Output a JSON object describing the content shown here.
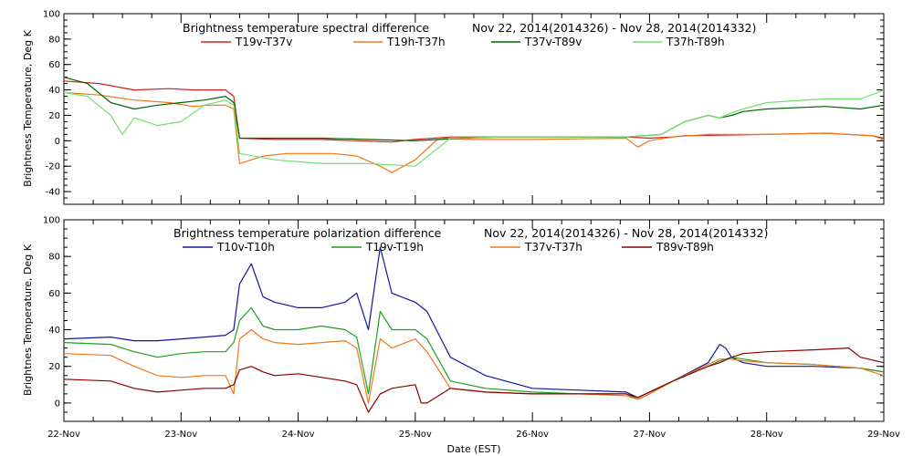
{
  "xlabel": "Date (EST)",
  "x_tick_labels": [
    "22-Nov",
    "23-Nov",
    "24-Nov",
    "25-Nov",
    "26-Nov",
    "27-Nov",
    "28-Nov",
    "29-Nov"
  ],
  "chart_data": [
    {
      "type": "line",
      "title_left": "Brightness temperature spectral difference",
      "title_right": "Nov 22, 2014(2014326) - Nov 28, 2014(2014332)",
      "ylabel": "Brightness Temperature, Deg K",
      "xlim": [
        0,
        7
      ],
      "ylim": [
        -50,
        100
      ],
      "y_ticks": [
        -40,
        -20,
        0,
        20,
        40,
        60,
        80,
        100
      ],
      "x_unit": "days since 22-Nov",
      "series": [
        {
          "name": "T19v-T37v",
          "color": "#d42020",
          "x": [
            0,
            0.3,
            0.6,
            0.9,
            1.1,
            1.25,
            1.38,
            1.45,
            1.5,
            1.8,
            2.2,
            2.5,
            2.8,
            3.0,
            3.3,
            3.8,
            4.2,
            4.8,
            5.0,
            5.2,
            5.3,
            6,
            6.5,
            6.9,
            7
          ],
          "y": [
            47,
            45,
            40,
            41,
            40,
            40,
            40,
            35,
            2,
            1,
            1,
            0,
            -1,
            1,
            3,
            3,
            3,
            3,
            2,
            3,
            4,
            5,
            6,
            4,
            2
          ]
        },
        {
          "name": "T19h-T37h",
          "color": "#f07818",
          "x": [
            0,
            0.3,
            0.6,
            0.9,
            1.1,
            1.25,
            1.38,
            1.45,
            1.5,
            1.7,
            1.9,
            2.3,
            2.5,
            2.7,
            2.8,
            3.0,
            3.2,
            3.5,
            4.0,
            4.8,
            4.9,
            5.0,
            5.2,
            5.5,
            6,
            6.5,
            6.9,
            7
          ],
          "y": [
            38,
            36,
            32,
            30,
            27,
            28,
            28,
            25,
            -18,
            -12,
            -10,
            -10,
            -12,
            -20,
            -25,
            -15,
            2,
            1,
            1,
            2,
            -5,
            0,
            3,
            5,
            5,
            6,
            4,
            1
          ]
        },
        {
          "name": "T37v-T89v",
          "color": "#006400",
          "x": [
            0,
            0.2,
            0.4,
            0.6,
            0.8,
            1.0,
            1.2,
            1.38,
            1.45,
            1.5,
            1.8,
            2.2,
            2.6,
            3.0,
            3.4,
            3.8,
            4.2,
            4.8,
            5.1,
            5.3,
            5.5,
            5.6,
            5.7,
            5.8,
            6.0,
            6.5,
            6.8,
            7
          ],
          "y": [
            50,
            45,
            30,
            25,
            28,
            30,
            32,
            35,
            30,
            2,
            2,
            2,
            1,
            0,
            2,
            3,
            3,
            3,
            5,
            15,
            20,
            18,
            20,
            23,
            25,
            27,
            25,
            28
          ]
        },
        {
          "name": "T37h-T89h",
          "color": "#70e070",
          "x": [
            0,
            0.2,
            0.4,
            0.5,
            0.6,
            0.8,
            1.0,
            1.2,
            1.38,
            1.45,
            1.5,
            1.8,
            2.2,
            2.6,
            3.0,
            3.3,
            3.8,
            4.2,
            4.8,
            5.1,
            5.3,
            5.5,
            5.6,
            5.7,
            5.8,
            6.0,
            6.5,
            6.8,
            6.95,
            7
          ],
          "y": [
            38,
            35,
            20,
            5,
            18,
            12,
            15,
            28,
            32,
            28,
            -10,
            -15,
            -18,
            -18,
            -20,
            2,
            3,
            3,
            3,
            5,
            15,
            20,
            18,
            22,
            25,
            30,
            33,
            33,
            38,
            40
          ]
        }
      ]
    },
    {
      "type": "line",
      "title_left": "Brightness temperature polarization difference",
      "title_right": "Nov 22, 2014(2014326) - Nov 28, 2014(2014332)",
      "ylabel": "Brightnes Temperature, Deg K",
      "xlim": [
        0,
        7
      ],
      "ylim": [
        -10,
        100
      ],
      "y_ticks": [
        0,
        20,
        40,
        60,
        80,
        100
      ],
      "x_unit": "days since 22-Nov",
      "series": [
        {
          "name": "T10v-T10h",
          "color": "#1414a0",
          "x": [
            0,
            0.4,
            0.6,
            0.8,
            1.0,
            1.2,
            1.38,
            1.45,
            1.5,
            1.6,
            1.7,
            1.8,
            2.0,
            2.2,
            2.4,
            2.5,
            2.6,
            2.7,
            2.8,
            3.0,
            3.1,
            3.3,
            3.6,
            4.0,
            4.4,
            4.8,
            4.9,
            5.0,
            5.2,
            5.5,
            5.6,
            5.65,
            5.7,
            5.8,
            6.0,
            6.4,
            6.8,
            7.0
          ],
          "y": [
            35,
            36,
            34,
            34,
            35,
            36,
            37,
            40,
            65,
            76,
            58,
            55,
            52,
            52,
            55,
            60,
            40,
            85,
            60,
            55,
            50,
            25,
            15,
            8,
            7,
            6,
            3,
            6,
            12,
            22,
            32,
            30,
            25,
            22,
            20,
            20,
            19,
            17
          ]
        },
        {
          "name": "T19v-T19h",
          "color": "#20a020",
          "x": [
            0,
            0.4,
            0.6,
            0.8,
            1.0,
            1.2,
            1.38,
            1.45,
            1.5,
            1.6,
            1.7,
            1.8,
            2.0,
            2.2,
            2.4,
            2.5,
            2.6,
            2.7,
            2.8,
            3.0,
            3.1,
            3.3,
            3.6,
            4.0,
            4.4,
            4.8,
            4.9,
            5.0,
            5.2,
            5.5,
            5.6,
            5.7,
            5.8,
            6.0,
            6.4,
            6.8,
            7.0
          ],
          "y": [
            33,
            32,
            28,
            25,
            27,
            28,
            28,
            33,
            45,
            52,
            42,
            40,
            40,
            42,
            40,
            36,
            5,
            50,
            40,
            40,
            35,
            12,
            8,
            6,
            5,
            5,
            2,
            5,
            12,
            20,
            23,
            25,
            24,
            22,
            21,
            19,
            17
          ]
        },
        {
          "name": "T37v-T37h",
          "color": "#f07818",
          "x": [
            0,
            0.4,
            0.6,
            0.8,
            1.0,
            1.2,
            1.38,
            1.45,
            1.5,
            1.6,
            1.7,
            1.8,
            2.0,
            2.2,
            2.4,
            2.5,
            2.6,
            2.7,
            2.8,
            3.0,
            3.1,
            3.3,
            3.6,
            4.0,
            4.4,
            4.8,
            4.9,
            5.0,
            5.2,
            5.5,
            5.6,
            5.7,
            5.8,
            6.0,
            6.4,
            6.8,
            7.0
          ],
          "y": [
            27,
            26,
            20,
            15,
            14,
            15,
            15,
            5,
            35,
            40,
            35,
            33,
            32,
            33,
            34,
            30,
            0,
            35,
            30,
            35,
            28,
            8,
            6,
            5,
            5,
            4,
            2,
            5,
            12,
            21,
            24,
            24,
            23,
            22,
            21,
            19,
            15
          ]
        },
        {
          "name": "T89v-T89h",
          "color": "#8b0000",
          "x": [
            0,
            0.4,
            0.6,
            0.8,
            1.0,
            1.2,
            1.38,
            1.45,
            1.5,
            1.6,
            1.7,
            1.8,
            2.0,
            2.2,
            2.4,
            2.5,
            2.6,
            2.7,
            2.8,
            3.0,
            3.05,
            3.1,
            3.3,
            3.6,
            4.0,
            4.4,
            4.8,
            4.9,
            5.0,
            5.2,
            5.5,
            5.6,
            5.7,
            5.8,
            6.0,
            6.4,
            6.7,
            6.8,
            7.0
          ],
          "y": [
            13,
            12,
            8,
            6,
            7,
            8,
            8,
            10,
            18,
            20,
            17,
            15,
            16,
            14,
            12,
            10,
            -5,
            5,
            8,
            10,
            0,
            0,
            8,
            6,
            5,
            5,
            5,
            3,
            6,
            12,
            20,
            22,
            25,
            27,
            28,
            29,
            30,
            25,
            22
          ]
        }
      ]
    }
  ]
}
